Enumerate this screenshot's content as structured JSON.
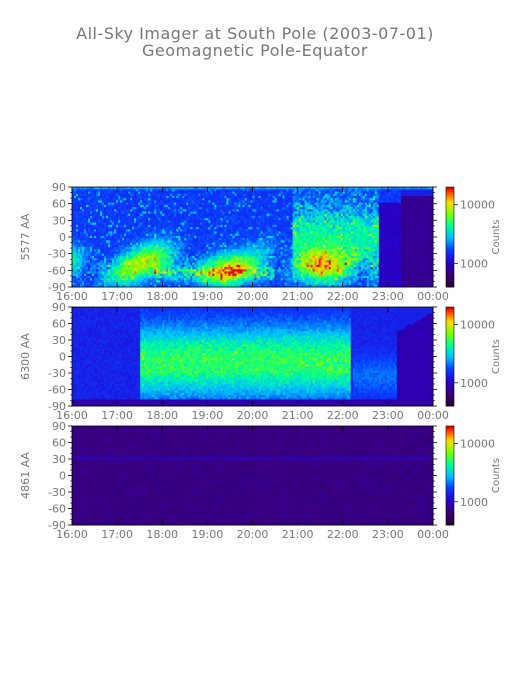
{
  "title": "All-Sky Imager at South Pole (2003-07-01)",
  "subtitle": "Geomagnetic Pole-Equator",
  "chart_data": [
    {
      "type": "heatmap",
      "ylabel": "5577 AA",
      "xticks": [
        "16:00",
        "17:00",
        "18:00",
        "19:00",
        "20:00",
        "21:00",
        "22:00",
        "23:00",
        "00:00"
      ],
      "yticks": [
        90,
        60,
        30,
        0,
        -30,
        -60,
        -90
      ],
      "ylim": [
        -90,
        90
      ],
      "colorbar": {
        "label": "Counts",
        "ticks": [
          1000,
          10000
        ],
        "tick_labels": [
          "1000",
          "10000"
        ],
        "range": [
          400,
          20000
        ],
        "scale": "log"
      },
      "cols": [
        {
          "t": 0,
          "lv": 0.34
        },
        {
          "t": 2,
          "lv": 0.36
        },
        {
          "t": 4,
          "lv": 0.34
        },
        {
          "t": 6,
          "lv": 0.37
        },
        {
          "t": 8,
          "lv": 0.38
        },
        {
          "t": 10,
          "lv": 0.37
        },
        {
          "t": 12,
          "lv": 0.39
        },
        {
          "t": 14,
          "lv": 0.41
        },
        {
          "t": 16,
          "lv": 0.42
        },
        {
          "t": 18,
          "lv": 0.43
        },
        {
          "t": 20,
          "lv": 0.42
        },
        {
          "t": 22,
          "lv": 0.41
        },
        {
          "t": 24,
          "lv": 0.4
        },
        {
          "t": 26,
          "lv": 0.41
        },
        {
          "t": 28,
          "lv": 0.42
        },
        {
          "t": 30,
          "lv": 0.43
        },
        {
          "t": 32,
          "lv": 0.44
        },
        {
          "t": 34,
          "lv": 0.45
        },
        {
          "t": 36,
          "lv": 0.44
        },
        {
          "t": 38,
          "lv": 0.43
        },
        {
          "t": 40,
          "lv": 0.41
        },
        {
          "t": 42,
          "lv": 0.4
        },
        {
          "t": 44,
          "lv": 0.41
        },
        {
          "t": 46,
          "lv": 0.42
        },
        {
          "t": 48,
          "lv": 0.44
        },
        {
          "t": 50,
          "lv": 0.45
        },
        {
          "t": 52,
          "lv": 0.43
        },
        {
          "t": 54,
          "lv": 0.41
        },
        {
          "t": 56,
          "lv": 0.4
        },
        {
          "t": 58,
          "lv": 0.38
        },
        {
          "t": 60,
          "lv": 0.38
        },
        {
          "t": 62,
          "lv": 0.39
        },
        {
          "t": 64,
          "lv": 0.4
        },
        {
          "t": 66,
          "lv": 0.41
        },
        {
          "t": 68,
          "lv": 0.4
        },
        {
          "t": 70,
          "lv": 0.39
        },
        {
          "t": 72,
          "lv": 0.38
        },
        {
          "t": 74,
          "lv": 0.37
        },
        {
          "t": 76,
          "lv": 0.36
        },
        {
          "t": 78,
          "lv": 0.35
        }
      ]
    },
    {
      "type": "heatmap",
      "ylabel": "6300 AA",
      "xticks": [
        "16:00",
        "17:00",
        "18:00",
        "19:00",
        "20:00",
        "21:00",
        "22:00",
        "23:00",
        "00:00"
      ],
      "yticks": [
        90,
        60,
        30,
        0,
        -30,
        -60,
        -90
      ],
      "ylim": [
        -90,
        90
      ],
      "colorbar": {
        "label": "Counts",
        "ticks": [
          1000,
          10000
        ],
        "tick_labels": [
          "1000",
          "10000"
        ],
        "range": [
          400,
          20000
        ],
        "scale": "log"
      }
    },
    {
      "type": "heatmap",
      "ylabel": "4861 AA",
      "xticks": [
        "16:00",
        "17:00",
        "18:00",
        "19:00",
        "20:00",
        "21:00",
        "22:00",
        "23:00",
        "00:00"
      ],
      "yticks": [
        90,
        60,
        30,
        0,
        -30,
        -60,
        -90
      ],
      "ylim": [
        -90,
        90
      ],
      "colorbar": {
        "label": "Counts",
        "ticks": [
          1000,
          10000
        ],
        "tick_labels": [
          "1000",
          "10000"
        ],
        "range": [
          400,
          20000
        ],
        "scale": "log"
      }
    }
  ]
}
